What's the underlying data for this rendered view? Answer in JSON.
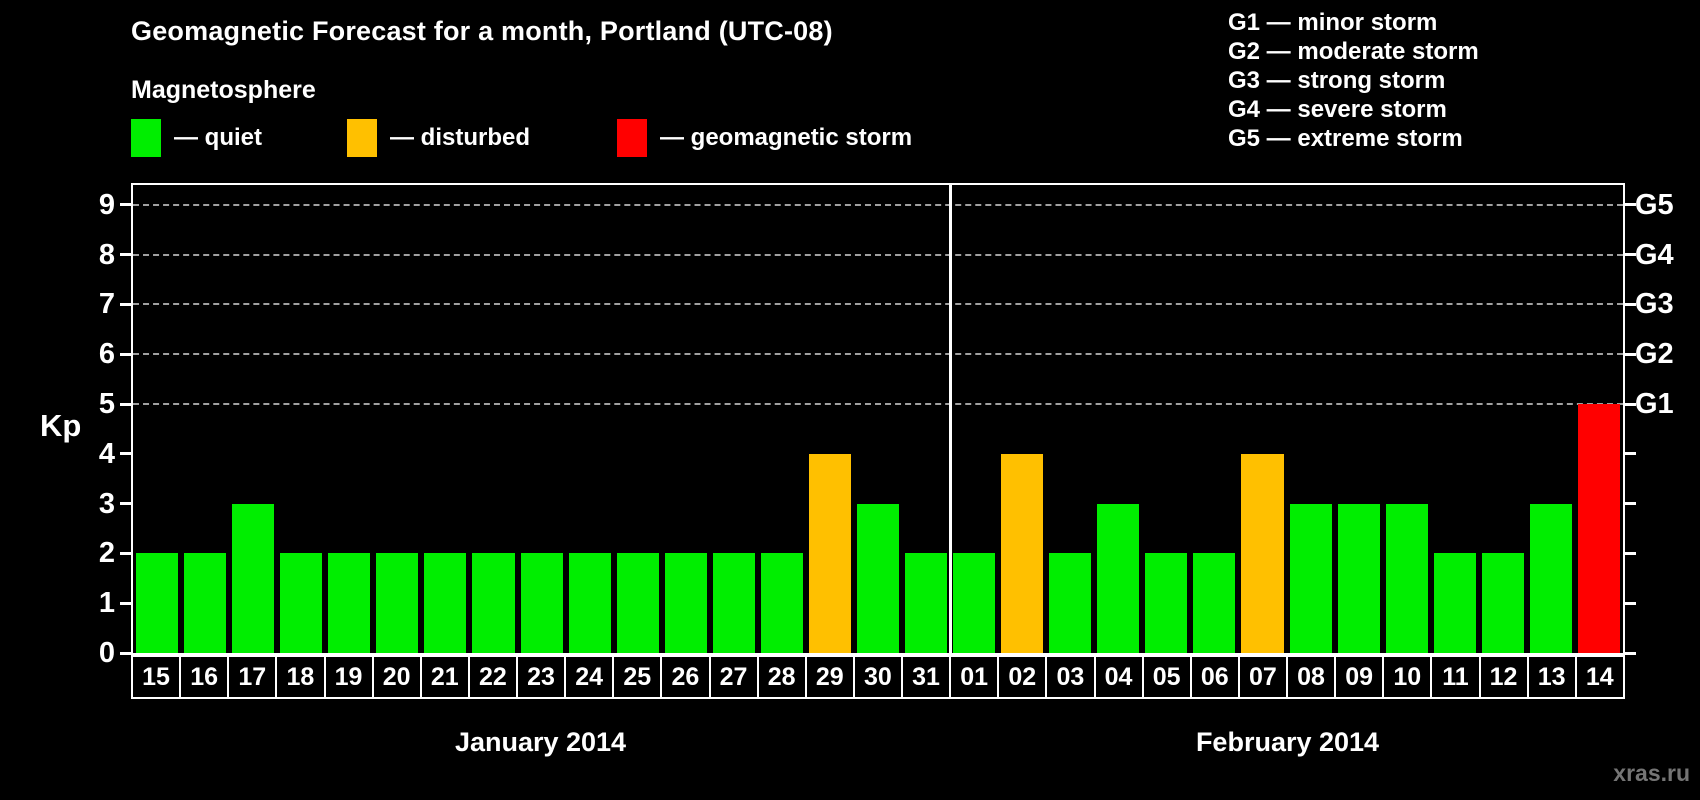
{
  "header": {
    "title": "Geomagnetic Forecast for a month, Portland (UTC-08)",
    "subtitle": "Magnetosphere"
  },
  "legend": {
    "items": [
      {
        "name": "quiet",
        "color": "#00ee00",
        "label": "— quiet"
      },
      {
        "name": "disturbed",
        "color": "#ffc000",
        "label": "— disturbed"
      },
      {
        "name": "storm",
        "color": "#ff0000",
        "label": "— geomagnetic storm"
      }
    ]
  },
  "g_scale_legend": {
    "items": [
      "G1 — minor storm",
      "G2 — moderate storm",
      "G3 — strong storm",
      "G4 — severe storm",
      "G5 — extreme storm"
    ]
  },
  "watermark": "xras.ru",
  "chart_data": {
    "type": "bar",
    "title": "Geomagnetic Forecast for a month, Portland (UTC-08)",
    "ylabel": "Kp",
    "ylim": [
      0,
      9.4
    ],
    "y_ticks": [
      0,
      1,
      2,
      3,
      4,
      5,
      6,
      7,
      8,
      9
    ],
    "gridlines_at_kp": [
      5,
      6,
      7,
      8,
      9
    ],
    "grid": "dashed horizontal lines at storm levels G1–G5 only",
    "right_axis": [
      {
        "kp": 5,
        "label": "G1"
      },
      {
        "kp": 6,
        "label": "G2"
      },
      {
        "kp": 7,
        "label": "G3"
      },
      {
        "kp": 8,
        "label": "G4"
      },
      {
        "kp": 9,
        "label": "G5"
      }
    ],
    "bar_colors": {
      "quiet": "#00ee00",
      "disturbed": "#ffc000",
      "storm": "#ff0000"
    },
    "color_by_kp": {
      "quiet": "Kp 0–3",
      "disturbed": "Kp 4",
      "storm": "Kp 5–9"
    },
    "months": [
      {
        "label": "January 2014",
        "categories": [
          "15",
          "16",
          "17",
          "18",
          "19",
          "20",
          "21",
          "22",
          "23",
          "24",
          "25",
          "26",
          "27",
          "28",
          "29",
          "30",
          "31"
        ],
        "values": [
          2,
          2,
          3,
          2,
          2,
          2,
          2,
          2,
          2,
          2,
          2,
          2,
          2,
          2,
          4,
          3,
          2
        ]
      },
      {
        "label": "February 2014",
        "categories": [
          "01",
          "02",
          "03",
          "04",
          "05",
          "06",
          "07",
          "08",
          "09",
          "10",
          "11",
          "12",
          "13",
          "14"
        ],
        "values": [
          2,
          4,
          2,
          3,
          2,
          2,
          4,
          3,
          3,
          3,
          2,
          2,
          3,
          5
        ]
      }
    ]
  }
}
